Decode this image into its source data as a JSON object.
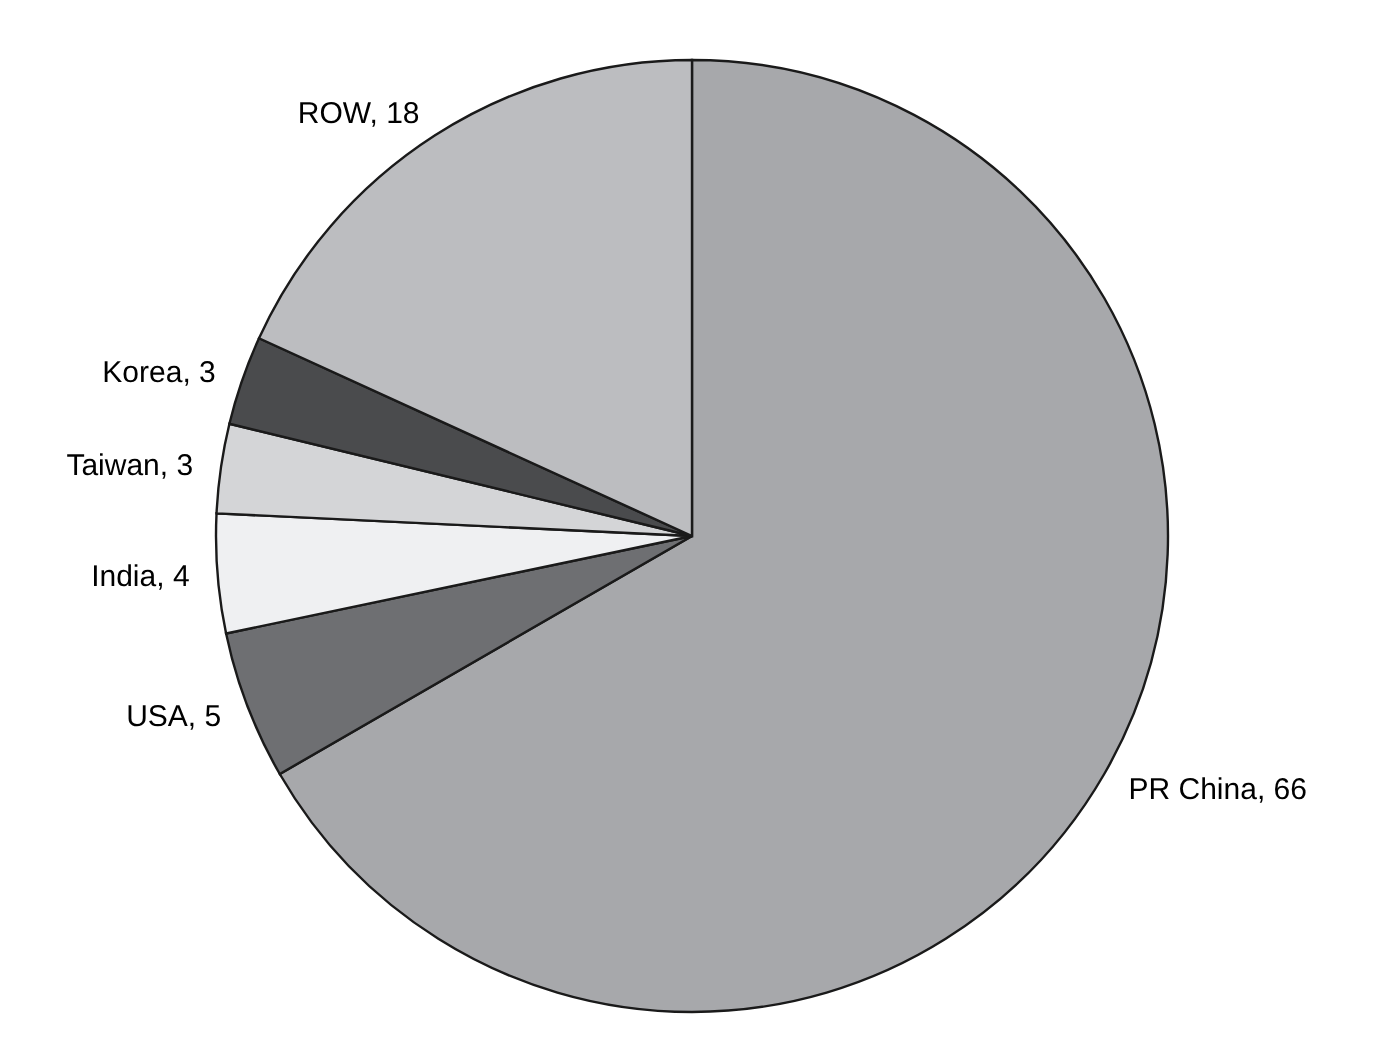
{
  "chart_data": {
    "type": "pie",
    "categories": [
      "PR China",
      "USA",
      "India",
      "Taiwan",
      "Korea",
      "ROW"
    ],
    "values": [
      66,
      5,
      4,
      3,
      3,
      18
    ],
    "colors": [
      "#a7a8ab",
      "#6e6f72",
      "#eff0f2",
      "#d4d5d7",
      "#4a4b4d",
      "#bcbdc0"
    ],
    "value_labels": [
      ", 66",
      ", 5",
      ", 4",
      ", 3",
      ", 3",
      ", 18"
    ]
  }
}
